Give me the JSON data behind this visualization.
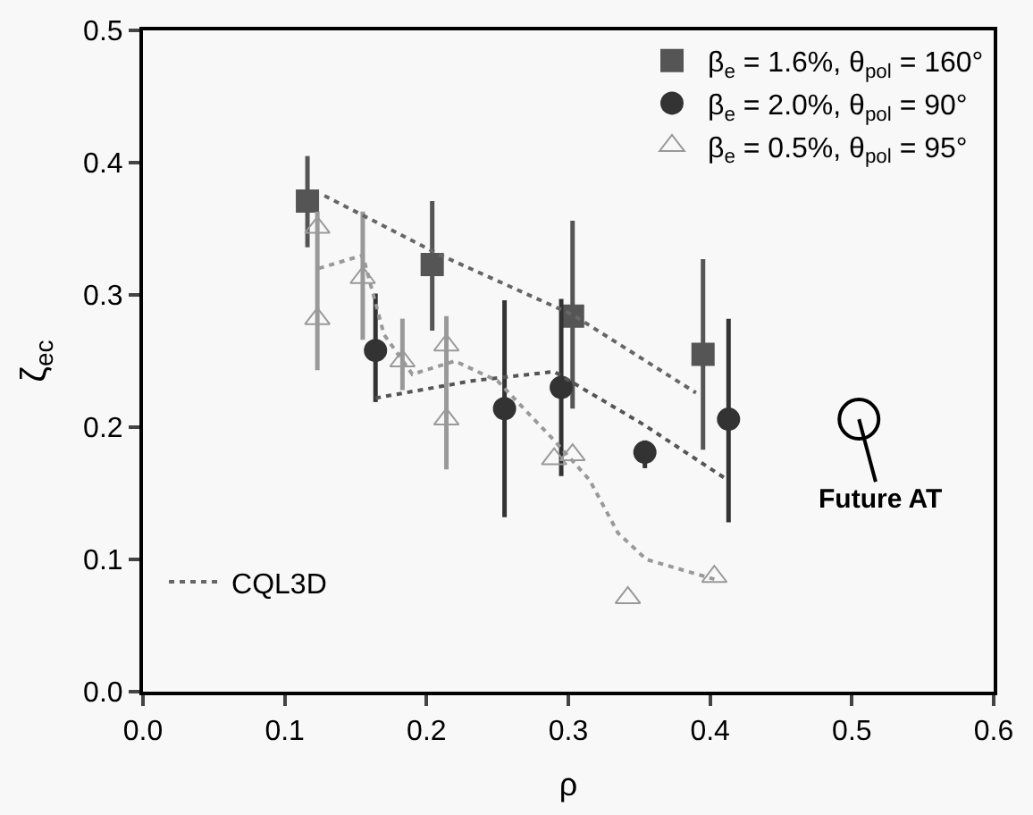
{
  "chart_data": {
    "type": "scatter",
    "xlabel": "ρ",
    "ylabel": "ζ$_{ec}$",
    "xlim": [
      0,
      0.6
    ],
    "ylim": [
      0,
      0.5
    ],
    "xticks": [
      {
        "value": 0,
        "label": "0.0"
      },
      {
        "value": 0.1,
        "label": "0.1"
      },
      {
        "value": 0.2,
        "label": "0.2"
      },
      {
        "value": 0.3,
        "label": "0.3"
      },
      {
        "value": 0.4,
        "label": "0.4"
      },
      {
        "value": 0.5,
        "label": "0.5"
      },
      {
        "value": 0.6,
        "label": "0.6"
      }
    ],
    "yticks": [
      {
        "value": 0,
        "label": "0.0"
      },
      {
        "value": 0.1,
        "label": "0.1"
      },
      {
        "value": 0.2,
        "label": "0.2"
      },
      {
        "value": 0.3,
        "label": "0.3"
      },
      {
        "value": 0.4,
        "label": "0.4"
      },
      {
        "value": 0.5,
        "label": "0.5"
      }
    ],
    "grid": false,
    "legend": "top right",
    "series": [
      {
        "name": "β$_{e}$ = 1.6%, θ$_{pol}$ = 160°",
        "color": "#555555",
        "marker": "square",
        "x": [
          0.116,
          0.204,
          0.303,
          0.395
        ],
        "values": [
          0.371,
          0.323,
          0.284,
          0.255
        ],
        "errors": [
          [
            0.336,
            0.405
          ],
          [
            0.273,
            0.371
          ],
          [
            0.214,
            0.356
          ],
          [
            0.183,
            0.327
          ]
        ]
      },
      {
        "name": "β$_{e}$ = 2.0%, θ$_{pol}$ = 90°",
        "color": "#333333",
        "marker": "circle",
        "x": [
          0.164,
          0.255,
          0.295,
          0.354,
          0.413
        ],
        "values": [
          0.258,
          0.214,
          0.23,
          0.181,
          0.206
        ],
        "errors": [
          [
            0.219,
            0.301
          ],
          [
            0.132,
            0.296
          ],
          [
            0.163,
            0.297
          ],
          [
            0.169,
            0.19
          ],
          [
            0.128,
            0.282
          ]
        ]
      },
      {
        "name": "β$_{e}$ = 0.5%, θ$_{pol}$ = 95°",
        "color": "#999999",
        "marker": "triangle",
        "x": [
          0.123,
          0.123,
          0.155,
          0.183,
          0.214,
          0.214,
          0.29,
          0.303,
          0.342,
          0.403
        ],
        "values": [
          0.351,
          0.282,
          0.313,
          0.25,
          0.262,
          0.206,
          0.176,
          0.179,
          0.071,
          0.087
        ],
        "errors": [
          null,
          [
            0.243,
            0.363
          ],
          [
            0.266,
            0.363
          ],
          [
            0.228,
            0.282
          ],
          null,
          [
            0.168,
            0.284
          ],
          null,
          null,
          null,
          null
        ]
      },
      {
        "name": "CQL3D",
        "type": "line",
        "color": "#666666",
        "line_style": "dotted",
        "marker": "none",
        "x": [
          0.128,
          0.21,
          0.303,
          0.39
        ],
        "values": [
          0.375,
          0.33,
          0.285,
          0.226
        ]
      },
      {
        "type": "line",
        "color": "#555555",
        "line_style": "dotted",
        "marker": "none",
        "x": [
          0.164,
          0.232,
          0.29,
          0.353,
          0.411
        ],
        "values": [
          0.222,
          0.235,
          0.242,
          0.202,
          0.161
        ]
      },
      {
        "type": "line",
        "color": "#999999",
        "line_style": "dotted",
        "marker": "none",
        "x": [
          0.124,
          0.155,
          0.17,
          0.19,
          0.22,
          0.25,
          0.29,
          0.315,
          0.335,
          0.355,
          0.403
        ],
        "values": [
          0.32,
          0.33,
          0.27,
          0.24,
          0.25,
          0.235,
          0.19,
          0.16,
          0.12,
          0.1,
          0.085
        ]
      },
      {
        "name": "Future AT",
        "color": "#000000",
        "marker": "open circle",
        "x": [
          0.505
        ],
        "values": [
          0.206
        ]
      }
    ]
  }
}
